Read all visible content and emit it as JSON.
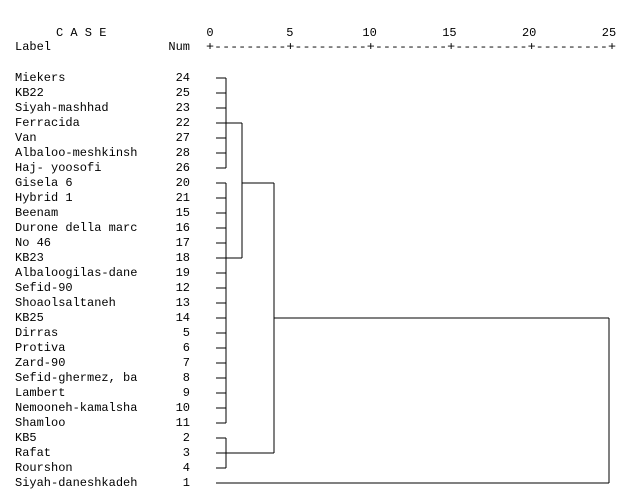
{
  "header": {
    "case": "C A S E",
    "label": "Label",
    "num": "Num"
  },
  "scale": {
    "ticks": [
      0,
      5,
      10,
      15,
      20,
      25
    ],
    "rule": "+---------+---------+---------+---------+---------+"
  },
  "rows": [
    {
      "label": "Miekers",
      "num": 24
    },
    {
      "label": "KB22",
      "num": 25
    },
    {
      "label": "Siyah-mashhad",
      "num": 23
    },
    {
      "label": "Ferracida",
      "num": 22
    },
    {
      "label": "Van",
      "num": 27
    },
    {
      "label": "Albaloo-meshkinsh",
      "num": 28
    },
    {
      "label": "Haj- yoosofi",
      "num": 26
    },
    {
      "label": "Gisela 6",
      "num": 20
    },
    {
      "label": "Hybrid 1",
      "num": 21
    },
    {
      "label": "Beenam",
      "num": 15
    },
    {
      "label": "Durone della marc",
      "num": 16
    },
    {
      "label": "No 46",
      "num": 17
    },
    {
      "label": "KB23",
      "num": 18
    },
    {
      "label": "Albaloogilas-dane",
      "num": 19
    },
    {
      "label": "Sefid-90",
      "num": 12
    },
    {
      "label": "Shoaolsaltaneh",
      "num": 13
    },
    {
      "label": "KB25",
      "num": 14
    },
    {
      "label": "Dirras",
      "num": 5
    },
    {
      "label": "Protiva",
      "num": 6
    },
    {
      "label": "Zard-90",
      "num": 7
    },
    {
      "label": "Sefid-ghermez, ba",
      "num": 8
    },
    {
      "label": "Lambert",
      "num": 9
    },
    {
      "label": "Nemooneh-kamalsha",
      "num": 10
    },
    {
      "label": "Shamloo",
      "num": 11
    },
    {
      "label": "KB5",
      "num": 2
    },
    {
      "label": "Rafat",
      "num": 3
    },
    {
      "label": "Rourshon",
      "num": 4
    },
    {
      "label": "Siyah-daneshkadeh",
      "num": 1
    }
  ]
}
